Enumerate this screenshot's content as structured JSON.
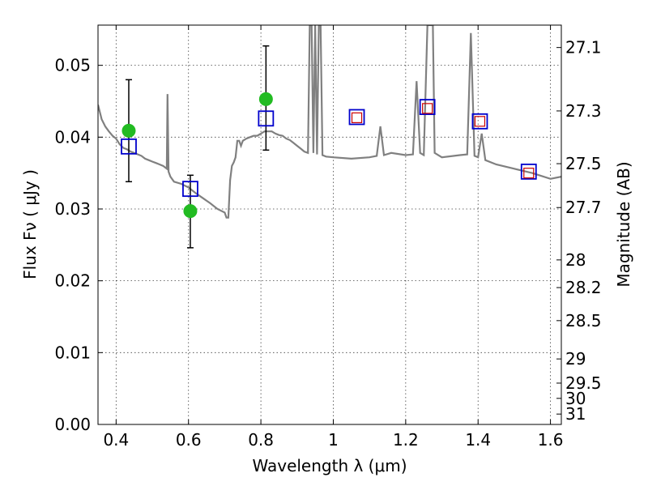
{
  "chart_data": {
    "type": "scatter",
    "title": "",
    "xlabel": "Wavelength  λ (μm)",
    "ylabel": "Flux  Fν  ( μJy )",
    "y2label": "Magnitude (AB)",
    "xlim": [
      0.35,
      1.63
    ],
    "ylim": [
      0.0,
      0.0556
    ],
    "grid": true,
    "x_ticks": [
      0.4,
      0.6,
      0.8,
      1.0,
      1.2,
      1.4,
      1.6
    ],
    "x_tick_labels": [
      "0.4",
      "0.6",
      "0.8",
      "1",
      "1.2",
      "1.4",
      "1.6"
    ],
    "y_ticks": [
      0.0,
      0.01,
      0.02,
      0.03,
      0.04,
      0.05
    ],
    "y_tick_labels": [
      "0.00",
      "0.01",
      "0.02",
      "0.03",
      "0.04",
      "0.05"
    ],
    "mag_ticks": [
      27.1,
      27.3,
      27.5,
      27.7,
      28,
      28.2,
      28.5,
      29,
      29.5,
      30,
      31
    ],
    "mag_tick_labels": [
      "27.1",
      "27.3",
      "27.5",
      "27.7",
      "28",
      "28.2",
      "28.5",
      "29",
      "29.5",
      "30",
      "31"
    ],
    "colors": {
      "model": "#808080",
      "observed": "#22bb22",
      "model_phot": "#0000cc",
      "model_phot_inner": "#cc0000",
      "errorbar": "#000000"
    },
    "series": [
      {
        "kind": "line",
        "x": [
          0.35,
          0.36,
          0.37,
          0.38,
          0.39,
          0.4,
          0.41,
          0.42,
          0.43,
          0.44,
          0.45,
          0.46,
          0.47,
          0.48,
          0.49,
          0.5,
          0.51,
          0.52,
          0.53,
          0.54,
          0.542,
          0.545,
          0.55,
          0.56,
          0.58,
          0.6,
          0.62,
          0.64,
          0.66,
          0.68,
          0.7,
          0.705,
          0.71,
          0.715,
          0.72,
          0.725,
          0.73,
          0.735,
          0.74,
          0.745,
          0.75,
          0.76,
          0.77,
          0.78,
          0.79,
          0.8,
          0.81,
          0.82,
          0.83,
          0.84,
          0.85,
          0.86,
          0.87,
          0.88,
          0.89,
          0.9,
          0.91,
          0.92,
          0.93,
          0.935,
          0.94,
          0.945,
          0.95,
          0.955,
          0.96,
          0.965,
          0.97,
          0.98,
          1.0,
          1.05,
          1.1,
          1.12,
          1.13,
          1.14,
          1.16,
          1.2,
          1.22,
          1.23,
          1.24,
          1.25,
          1.26,
          1.265,
          1.27,
          1.275,
          1.28,
          1.3,
          1.35,
          1.37,
          1.38,
          1.39,
          1.4,
          1.41,
          1.42,
          1.45,
          1.5,
          1.55,
          1.6,
          1.63
        ],
        "y": [
          0.0445,
          0.0425,
          0.0415,
          0.0408,
          0.0402,
          0.0398,
          0.039,
          0.0385,
          0.0383,
          0.038,
          0.0378,
          0.0376,
          0.0374,
          0.037,
          0.0368,
          0.0366,
          0.0364,
          0.0362,
          0.036,
          0.0356,
          0.046,
          0.0352,
          0.0345,
          0.0338,
          0.0335,
          0.033,
          0.0322,
          0.0315,
          0.0308,
          0.03,
          0.0295,
          0.0288,
          0.0288,
          0.034,
          0.036,
          0.0365,
          0.0372,
          0.0395,
          0.0395,
          0.0388,
          0.0395,
          0.0398,
          0.04,
          0.0402,
          0.0402,
          0.0405,
          0.0408,
          0.0408,
          0.0408,
          0.0405,
          0.0403,
          0.0402,
          0.0398,
          0.0396,
          0.0392,
          0.0388,
          0.0384,
          0.038,
          0.0378,
          0.0556,
          0.0556,
          0.0378,
          0.0556,
          0.0376,
          0.0556,
          0.0556,
          0.0375,
          0.0373,
          0.0372,
          0.037,
          0.0372,
          0.0374,
          0.0415,
          0.0375,
          0.0378,
          0.0375,
          0.0376,
          0.0478,
          0.0378,
          0.0375,
          0.0556,
          0.0556,
          0.0556,
          0.0556,
          0.0378,
          0.0372,
          0.0375,
          0.0376,
          0.0545,
          0.0374,
          0.0372,
          0.0405,
          0.0368,
          0.0362,
          0.0356,
          0.035,
          0.0342,
          0.0345
        ]
      },
      {
        "kind": "observed",
        "x": [
          0.435,
          0.605,
          0.814
        ],
        "y": [
          0.0409,
          0.0297,
          0.0453
        ],
        "yerr_low": [
          0.0338,
          0.0246,
          0.0382
        ],
        "yerr_high": [
          0.048,
          0.0347,
          0.0527
        ]
      },
      {
        "kind": "model_phot",
        "x": [
          0.435,
          0.605,
          0.814,
          1.065,
          1.26,
          1.405,
          1.54
        ],
        "y": [
          0.0387,
          0.0328,
          0.0426,
          0.0428,
          0.0442,
          0.0422,
          0.0352
        ]
      },
      {
        "kind": "model_phot_inner",
        "x": [
          1.065,
          1.26,
          1.405,
          1.54
        ],
        "y": [
          0.0427,
          0.044,
          0.0422,
          0.035
        ]
      }
    ]
  }
}
